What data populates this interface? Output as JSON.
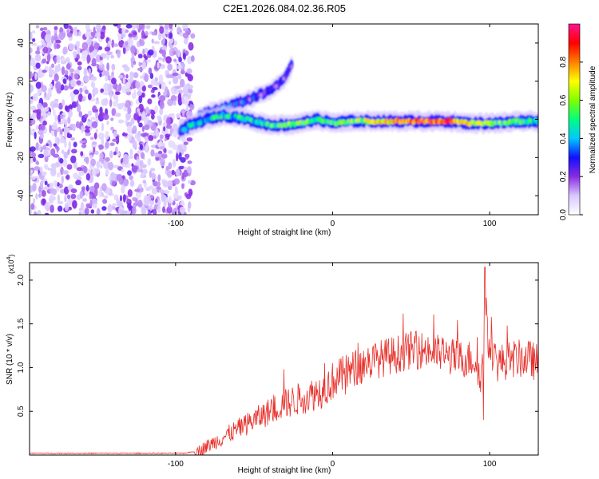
{
  "page_title": "C2E1.2026.084.02.36.R05",
  "chart_data": [
    {
      "type": "heatmap",
      "title": "C2E1.2026.084.02.36.R05",
      "xlabel": "Height of straight line (km)",
      "ylabel": "Frequency (Hz)",
      "xlim": [
        -193,
        131
      ],
      "ylim": [
        -50,
        50
      ],
      "x_ticks": [
        {
          "value": -100,
          "label": "-100"
        },
        {
          "value": 0,
          "label": "0"
        },
        {
          "value": 100,
          "label": "100"
        }
      ],
      "y_ticks": [
        {
          "value": -40,
          "label": "-40"
        },
        {
          "value": -20,
          "label": "-20"
        },
        {
          "value": 0,
          "label": "0"
        },
        {
          "value": 20,
          "label": "20"
        },
        {
          "value": 40,
          "label": "40"
        }
      ],
      "colorbar": {
        "label": "Normalized spectral amplitude",
        "range": [
          0,
          1
        ],
        "ticks": [
          {
            "value": 0.0,
            "label": "0.0"
          },
          {
            "value": 0.2,
            "label": "0.2"
          },
          {
            "value": 0.4,
            "label": "0.4"
          },
          {
            "value": 0.6,
            "label": "0.6"
          },
          {
            "value": 0.8,
            "label": "0.8"
          }
        ],
        "colors": [
          "#ffffff",
          "#d8c8ff",
          "#8a2be2",
          "#1010ff",
          "#00c8ff",
          "#00ff7f",
          "#7fff00",
          "#ffff00",
          "#ff7f00",
          "#ff0000",
          "#ff1493"
        ]
      },
      "noise_region": {
        "x_range": [
          -193,
          -92
        ],
        "y_range": [
          -50,
          50
        ],
        "level": 0.12
      },
      "ridge": [
        {
          "x": -97,
          "y": -6,
          "amp": 0.35
        },
        {
          "x": -90,
          "y": -3,
          "amp": 0.4
        },
        {
          "x": -80,
          "y": 0,
          "amp": 0.42
        },
        {
          "x": -70,
          "y": 2,
          "amp": 0.45
        },
        {
          "x": -60,
          "y": 1,
          "amp": 0.45
        },
        {
          "x": -50,
          "y": -1,
          "amp": 0.45
        },
        {
          "x": -40,
          "y": -3,
          "amp": 0.5
        },
        {
          "x": -30,
          "y": -3,
          "amp": 0.55
        },
        {
          "x": -20,
          "y": -2,
          "amp": 0.55
        },
        {
          "x": -10,
          "y": 0,
          "amp": 0.55
        },
        {
          "x": 0,
          "y": -2,
          "amp": 0.5
        },
        {
          "x": 10,
          "y": -1,
          "amp": 0.55
        },
        {
          "x": 20,
          "y": -1,
          "amp": 0.6
        },
        {
          "x": 40,
          "y": -1,
          "amp": 0.75
        },
        {
          "x": 60,
          "y": -1,
          "amp": 0.85
        },
        {
          "x": 75,
          "y": -1,
          "amp": 0.85
        },
        {
          "x": 85,
          "y": -2,
          "amp": 0.7
        },
        {
          "x": 95,
          "y": -2,
          "amp": 0.6
        },
        {
          "x": 105,
          "y": -2,
          "amp": 0.55
        },
        {
          "x": 120,
          "y": -1,
          "amp": 0.5
        },
        {
          "x": 131,
          "y": -1,
          "amp": 0.45
        }
      ],
      "branch": [
        {
          "x": -85,
          "y": 2,
          "amp": 0.35
        },
        {
          "x": -70,
          "y": 6,
          "amp": 0.3
        },
        {
          "x": -55,
          "y": 10,
          "amp": 0.25
        },
        {
          "x": -40,
          "y": 15,
          "amp": 0.2
        },
        {
          "x": -30,
          "y": 22,
          "amp": 0.15
        },
        {
          "x": -25,
          "y": 30,
          "amp": 0.1
        }
      ]
    },
    {
      "type": "line",
      "xlabel": "Height of straight line (km)",
      "ylabel": "SNR (10 * v/v)",
      "y_multiplier": "(x10^4)",
      "y_multiplier_base": "(x10",
      "y_multiplier_exp": "4",
      "y_multiplier_close": ")",
      "xlim": [
        -193,
        131
      ],
      "ylim": [
        0,
        2.2
      ],
      "x_ticks": [
        {
          "value": -100,
          "label": "-100"
        },
        {
          "value": 0,
          "label": "0"
        },
        {
          "value": 100,
          "label": "100"
        }
      ],
      "y_ticks": [
        {
          "value": 0.5,
          "label": "0.5"
        },
        {
          "value": 1.0,
          "label": "1.0"
        },
        {
          "value": 1.5,
          "label": "1.5"
        },
        {
          "value": 2.0,
          "label": "2.0"
        }
      ],
      "series": [
        {
          "name": "SNR",
          "color": "#e8302a",
          "x": [
            -193,
            -170,
            -150,
            -130,
            -110,
            -95,
            -85,
            -75,
            -65,
            -55,
            -45,
            -35,
            -25,
            -15,
            -5,
            0,
            10,
            20,
            30,
            40,
            50,
            60,
            70,
            80,
            90,
            95,
            97,
            99,
            105,
            115,
            125,
            131
          ],
          "y": [
            0.02,
            0.02,
            0.02,
            0.02,
            0.02,
            0.02,
            0.05,
            0.15,
            0.25,
            0.35,
            0.45,
            0.55,
            0.62,
            0.68,
            0.75,
            0.85,
            0.95,
            1.05,
            1.1,
            1.15,
            1.2,
            1.2,
            1.15,
            1.1,
            1.1,
            0.9,
            1.6,
            1.3,
            1.05,
            1.1,
            1.1,
            1.05
          ],
          "spikes": [
            {
              "x": -31,
              "y": 0.98
            },
            {
              "x": -5,
              "y": 1.05
            },
            {
              "x": 96,
              "y": 0.4
            },
            {
              "x": 97,
              "y": 2.15
            },
            {
              "x": 98,
              "y": 1.8
            }
          ]
        }
      ]
    }
  ]
}
